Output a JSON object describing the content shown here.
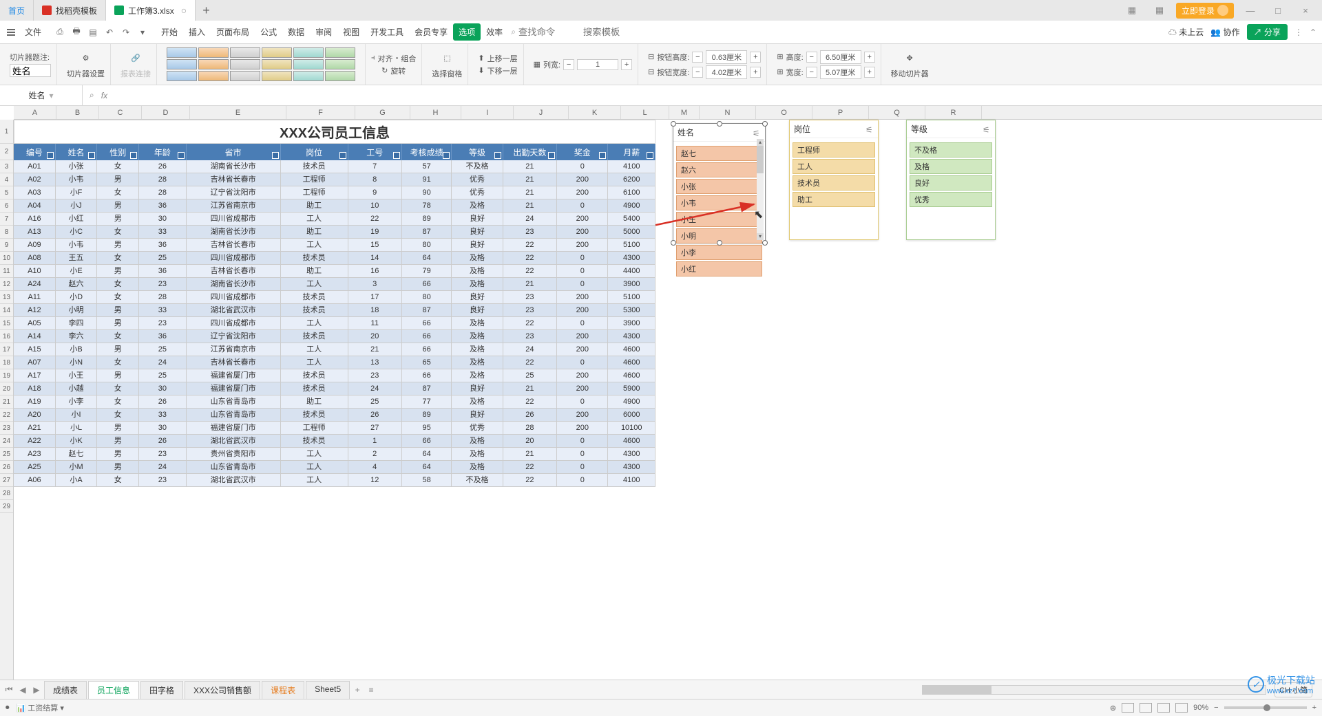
{
  "tabs": {
    "home": "首页",
    "template": "找稻壳模板",
    "workbook": "工作簿3.xlsx"
  },
  "login_button": "立即登录",
  "menu": {
    "file": "文件",
    "items": [
      "开始",
      "插入",
      "页面布局",
      "公式",
      "数据",
      "审阅",
      "视图",
      "开发工具",
      "会员专享",
      "选项",
      "效率"
    ],
    "highlight_index": 9
  },
  "search": {
    "cmd_placeholder": "查找命令",
    "tpl_placeholder": "搜索模板"
  },
  "cloud": {
    "notsync": "未上云",
    "collab": "协作",
    "share": "分享"
  },
  "ribbon": {
    "slicer_caption_label": "切片器题注:",
    "slicer_caption_value": "姓名",
    "slicer_settings": "切片器设置",
    "report_link": "报表连接",
    "align": "对齐",
    "group": "组合",
    "rotate": "旋转",
    "selpane": "选择窗格",
    "bringfwd": "上移一层",
    "sendback": "下移一层",
    "cols_label": "列宽:",
    "cols_value": "1",
    "btnheight_label": "按钮高度:",
    "btnheight_value": "0.63厘米",
    "btnwidth_label": "按钮宽度:",
    "btnwidth_value": "4.02厘米",
    "height_label": "高度:",
    "height_value": "6.50厘米",
    "width_label": "宽度:",
    "width_value": "5.07厘米",
    "move_slicer": "移动切片器"
  },
  "namebox": "姓名",
  "title": "XXX公司员工信息",
  "columns": [
    "编号",
    "姓名",
    "性别",
    "年龄",
    "省市",
    "岗位",
    "工号",
    "考核成绩",
    "等级",
    "出勤天数",
    "奖金",
    "月薪"
  ],
  "colLetters": [
    "A",
    "B",
    "C",
    "D",
    "E",
    "F",
    "G",
    "H",
    "I",
    "J",
    "K",
    "L",
    "M",
    "N",
    "O",
    "P",
    "Q",
    "R"
  ],
  "colClasses": [
    "colA",
    "colB",
    "colC",
    "colD",
    "colE",
    "colF",
    "colG",
    "colH",
    "colI",
    "colJ",
    "colK",
    "colL"
  ],
  "extraColWidths": [
    44,
    82,
    82,
    82,
    82,
    82,
    94
  ],
  "rows": [
    [
      "A01",
      "小张",
      "女",
      "26",
      "湖南省长沙市",
      "技术员",
      "7",
      "57",
      "不及格",
      "21",
      "0",
      "4100"
    ],
    [
      "A02",
      "小韦",
      "男",
      "28",
      "吉林省长春市",
      "工程师",
      "8",
      "91",
      "优秀",
      "21",
      "200",
      "6200"
    ],
    [
      "A03",
      "小F",
      "女",
      "28",
      "辽宁省沈阳市",
      "工程师",
      "9",
      "90",
      "优秀",
      "21",
      "200",
      "6100"
    ],
    [
      "A04",
      "小J",
      "男",
      "36",
      "江苏省南京市",
      "助工",
      "10",
      "78",
      "及格",
      "21",
      "0",
      "4900"
    ],
    [
      "A16",
      "小红",
      "男",
      "30",
      "四川省成都市",
      "工人",
      "22",
      "89",
      "良好",
      "24",
      "200",
      "5400"
    ],
    [
      "A13",
      "小C",
      "女",
      "33",
      "湖南省长沙市",
      "助工",
      "19",
      "87",
      "良好",
      "23",
      "200",
      "5000"
    ],
    [
      "A09",
      "小韦",
      "男",
      "36",
      "吉林省长春市",
      "工人",
      "15",
      "80",
      "良好",
      "22",
      "200",
      "5100"
    ],
    [
      "A08",
      "王五",
      "女",
      "25",
      "四川省成都市",
      "技术员",
      "14",
      "64",
      "及格",
      "22",
      "0",
      "4300"
    ],
    [
      "A10",
      "小E",
      "男",
      "36",
      "吉林省长春市",
      "助工",
      "16",
      "79",
      "及格",
      "22",
      "0",
      "4400"
    ],
    [
      "A24",
      "赵六",
      "女",
      "23",
      "湖南省长沙市",
      "工人",
      "3",
      "66",
      "及格",
      "21",
      "0",
      "3900"
    ],
    [
      "A11",
      "小D",
      "女",
      "28",
      "四川省成都市",
      "技术员",
      "17",
      "80",
      "良好",
      "23",
      "200",
      "5100"
    ],
    [
      "A12",
      "小明",
      "男",
      "33",
      "湖北省武汉市",
      "技术员",
      "18",
      "87",
      "良好",
      "23",
      "200",
      "5300"
    ],
    [
      "A05",
      "李四",
      "男",
      "23",
      "四川省成都市",
      "工人",
      "11",
      "66",
      "及格",
      "22",
      "0",
      "3900"
    ],
    [
      "A14",
      "李六",
      "女",
      "36",
      "辽宁省沈阳市",
      "技术员",
      "20",
      "66",
      "及格",
      "23",
      "200",
      "4300"
    ],
    [
      "A15",
      "小B",
      "男",
      "25",
      "江苏省南京市",
      "工人",
      "21",
      "66",
      "及格",
      "24",
      "200",
      "4600"
    ],
    [
      "A07",
      "小N",
      "女",
      "24",
      "吉林省长春市",
      "工人",
      "13",
      "65",
      "及格",
      "22",
      "0",
      "4600"
    ],
    [
      "A17",
      "小王",
      "男",
      "25",
      "福建省厦门市",
      "技术员",
      "23",
      "66",
      "及格",
      "25",
      "200",
      "4600"
    ],
    [
      "A18",
      "小越",
      "女",
      "30",
      "福建省厦门市",
      "技术员",
      "24",
      "87",
      "良好",
      "21",
      "200",
      "5900"
    ],
    [
      "A19",
      "小李",
      "女",
      "26",
      "山东省青岛市",
      "助工",
      "25",
      "77",
      "及格",
      "22",
      "0",
      "4900"
    ],
    [
      "A20",
      "小I",
      "女",
      "33",
      "山东省青岛市",
      "技术员",
      "26",
      "89",
      "良好",
      "26",
      "200",
      "6000"
    ],
    [
      "A21",
      "小L",
      "男",
      "30",
      "福建省厦门市",
      "工程师",
      "27",
      "95",
      "优秀",
      "28",
      "200",
      "10100"
    ],
    [
      "A22",
      "小K",
      "男",
      "26",
      "湖北省武汉市",
      "技术员",
      "1",
      "66",
      "及格",
      "20",
      "0",
      "4600"
    ],
    [
      "A23",
      "赵七",
      "男",
      "23",
      "贵州省贵阳市",
      "工人",
      "2",
      "64",
      "及格",
      "21",
      "0",
      "4300"
    ],
    [
      "A25",
      "小M",
      "男",
      "24",
      "山东省青岛市",
      "工人",
      "4",
      "64",
      "及格",
      "22",
      "0",
      "4300"
    ],
    [
      "A06",
      "小A",
      "女",
      "23",
      "湖北省武汉市",
      "工人",
      "12",
      "58",
      "不及格",
      "22",
      "0",
      "4100"
    ]
  ],
  "slicers": {
    "name": {
      "title": "姓名",
      "items": [
        "赵七",
        "赵六",
        "小张",
        "小韦",
        "小王",
        "小明",
        "小李",
        "小红"
      ]
    },
    "post": {
      "title": "岗位",
      "items": [
        "工程师",
        "工人",
        "技术员",
        "助工"
      ]
    },
    "grade": {
      "title": "等级",
      "items": [
        "不及格",
        "及格",
        "良好",
        "优秀"
      ]
    }
  },
  "sheettabs": [
    "成绩表",
    "员工信息",
    "田字格",
    "XXX公司销售额",
    "课程表",
    "Sheet5"
  ],
  "active_sheet_index": 1,
  "lang_indicator": "CH 小简",
  "status": {
    "calc": "工资结算",
    "zoom": "90%"
  },
  "watermark": {
    "name": "极光下载站",
    "url": "www.xz7.com"
  }
}
